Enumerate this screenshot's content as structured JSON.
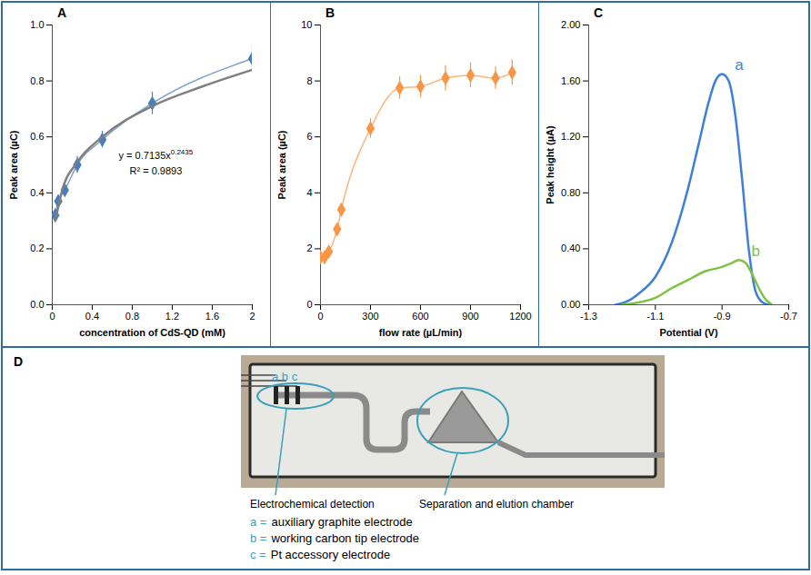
{
  "chart_data": [
    {
      "type": "line",
      "panel_label": "A",
      "x_label": "concentration of CdS-QD (mM)",
      "y_label": "Peak area (µC)",
      "xlim": [
        0,
        2
      ],
      "xticks": [
        0,
        0.4,
        0.8,
        1.2,
        1.6,
        2
      ],
      "ylim": [
        0,
        1
      ],
      "yticks": [
        {
          "value": 0,
          "label": "0.0"
        },
        0.2,
        0.4,
        0.6,
        0.8,
        {
          "value": 1,
          "label": "1.0"
        }
      ],
      "grid": false,
      "series": [
        {
          "color": "#4a7ebb",
          "marker": "diamond",
          "line_style": "solid",
          "x": [
            0.03,
            0.06,
            0.125,
            0.25,
            0.5,
            1,
            2
          ],
          "values": [
            0.32,
            0.37,
            0.41,
            0.5,
            0.59,
            0.72,
            0.88
          ],
          "error": [
            0.02,
            0.02,
            0.02,
            0.03,
            0.03,
            0.04,
            0.05
          ]
        },
        {
          "color": "#7f7f7f",
          "marker": "none",
          "line_style": "solid",
          "x": [
            0.03,
            0.1,
            0.25,
            0.5,
            1,
            1.5,
            2
          ],
          "values": [
            0.3,
            0.41,
            0.51,
            0.6,
            0.71,
            0.78,
            0.84
          ]
        }
      ],
      "annotations": [
        {
          "text": "y = 0.7135x",
          "superscript": "0.2435"
        },
        {
          "text": "R² = 0.9893"
        }
      ]
    },
    {
      "type": "line",
      "panel_label": "B",
      "x_label": "flow rate (µL/min)",
      "y_label": "Peak area (µC)",
      "xlim": [
        0,
        1200
      ],
      "xticks": [
        0,
        300,
        600,
        900,
        1200
      ],
      "ylim": [
        0,
        10
      ],
      "yticks": [
        0,
        2,
        4,
        6,
        8,
        10
      ],
      "grid": false,
      "series": [
        {
          "color": "#f79646",
          "marker": "diamond",
          "line_style": "solid",
          "x": [
            0,
            25,
            50,
            100,
            125,
            300,
            475,
            600,
            750,
            900,
            1050,
            1150
          ],
          "values": [
            1.7,
            1.7,
            1.9,
            2.7,
            3.4,
            6.3,
            7.75,
            7.8,
            8.1,
            8.2,
            8.1,
            8.3
          ],
          "error": [
            0.1,
            0.1,
            0.1,
            0.15,
            0.2,
            0.35,
            0.4,
            0.4,
            0.45,
            0.45,
            0.4,
            0.45
          ]
        }
      ]
    },
    {
      "type": "line",
      "panel_label": "C",
      "x_label": "Potential (V)",
      "y_label": "Peak height (µA)",
      "xlim": [
        -1.3,
        -0.7
      ],
      "xticks": [
        -1.3,
        -1.1,
        -0.9,
        -0.7
      ],
      "ylim": [
        0,
        2
      ],
      "yticks": [
        {
          "value": 0,
          "label": "0.00"
        },
        {
          "value": 0.4,
          "label": "0.40"
        },
        {
          "value": 0.8,
          "label": "0.80"
        },
        {
          "value": 1.2,
          "label": "1.20"
        },
        {
          "value": 1.6,
          "label": "1.60"
        },
        {
          "value": 2,
          "label": "2.00"
        }
      ],
      "grid": false,
      "series": [
        {
          "name": "a",
          "color": "#3d7fd9",
          "marker": "none",
          "line_style": "solid",
          "x": [
            -1.22,
            -1.18,
            -1.15,
            -1.1,
            -1.05,
            -1.0,
            -0.97,
            -0.94,
            -0.92,
            -0.9,
            -0.88,
            -0.86,
            -0.84,
            -0.82,
            -0.8,
            -0.78,
            -0.76
          ],
          "values": [
            0,
            0.03,
            0.08,
            0.2,
            0.45,
            0.85,
            1.15,
            1.45,
            1.6,
            1.65,
            1.6,
            1.35,
            0.9,
            0.4,
            0.1,
            0.02,
            0
          ]
        },
        {
          "name": "b",
          "color": "#7dc242",
          "marker": "none",
          "line_style": "solid",
          "x": [
            -1.2,
            -1.1,
            -1.05,
            -1.0,
            -0.95,
            -0.9,
            -0.87,
            -0.85,
            -0.83,
            -0.81,
            -0.79,
            -0.77,
            -0.75
          ],
          "values": [
            0,
            0.05,
            0.12,
            0.18,
            0.24,
            0.27,
            0.3,
            0.32,
            0.3,
            0.22,
            0.12,
            0.04,
            0
          ]
        }
      ]
    }
  ],
  "photo_panel": {
    "panel_label": "D",
    "electrode_marks": "a b c",
    "regions": [
      "Electrochemical detection",
      "Separation and elution chamber"
    ],
    "key": [
      {
        "key": "a =",
        "text": "auxiliary graphite electrode"
      },
      {
        "key": "b =",
        "text": "working carbon tip electrode"
      },
      {
        "key": "c =",
        "text": "Pt accessory electrode"
      }
    ]
  }
}
